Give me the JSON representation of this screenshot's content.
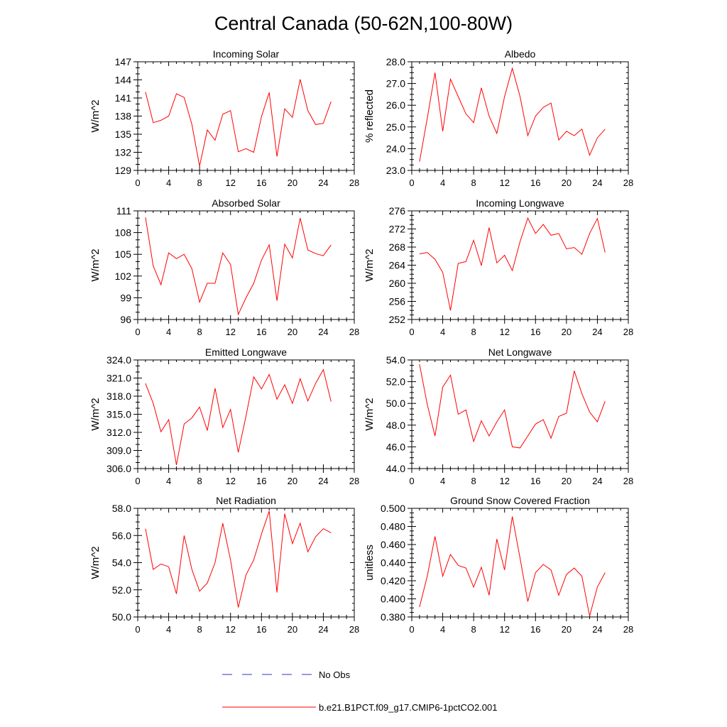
{
  "title": "Central Canada (50-62N,100-80W)",
  "colors": {
    "model": "#ff0000",
    "obs": "#3333cc",
    "axis": "#000000"
  },
  "legend": {
    "obs_label": "No Obs",
    "model_label": "b.e21.B1PCT.f09_g17.CMIP6-1pctCO2.001"
  },
  "chart_data": [
    {
      "type": "line",
      "title": "Incoming Solar",
      "ylabel": "W/m^2",
      "xlim": [
        0,
        28
      ],
      "xticks": [
        "0",
        "4",
        "8",
        "12",
        "16",
        "20",
        "24",
        "28"
      ],
      "ylim": [
        129,
        147
      ],
      "yticks": [
        "129",
        "132",
        "135",
        "138",
        "141",
        "144",
        "147"
      ],
      "x": [
        1,
        2,
        3,
        4,
        5,
        6,
        7,
        8,
        9,
        10,
        11,
        12,
        13,
        14,
        15,
        16,
        17,
        18,
        19,
        20,
        21,
        22,
        23,
        24,
        25
      ],
      "series": [
        {
          "name": "b.e21.B1PCT.f09_g17.CMIP6-1pctCO2.001",
          "values": [
            142.0,
            136.9,
            137.3,
            138.0,
            141.7,
            141.1,
            136.6,
            129.7,
            135.7,
            134.0,
            138.3,
            138.9,
            132.1,
            132.6,
            132.0,
            137.9,
            141.9,
            131.3,
            139.2,
            137.8,
            144.1,
            138.9,
            136.6,
            136.8,
            140.4
          ]
        }
      ]
    },
    {
      "type": "line",
      "title": "Albedo",
      "ylabel": "% reflected",
      "xlim": [
        0,
        28
      ],
      "xticks": [
        "0",
        "4",
        "8",
        "12",
        "16",
        "20",
        "24",
        "28"
      ],
      "ylim": [
        23.0,
        28.0
      ],
      "yticks": [
        "23.0",
        "24.0",
        "25.0",
        "26.0",
        "27.0",
        "28.0"
      ],
      "x": [
        1,
        2,
        3,
        4,
        5,
        6,
        7,
        8,
        9,
        10,
        11,
        12,
        13,
        14,
        15,
        16,
        17,
        18,
        19,
        20,
        21,
        22,
        23,
        24,
        25
      ],
      "series": [
        {
          "name": "b.e21.B1PCT.f09_g17.CMIP6-1pctCO2.001",
          "values": [
            23.4,
            25.4,
            27.5,
            24.8,
            27.2,
            26.4,
            25.6,
            25.2,
            26.8,
            25.5,
            24.7,
            26.4,
            27.7,
            26.4,
            24.6,
            25.5,
            25.9,
            26.1,
            24.4,
            24.8,
            24.6,
            24.9,
            23.7,
            24.5,
            24.9
          ]
        }
      ]
    },
    {
      "type": "line",
      "title": "Absorbed Solar",
      "ylabel": "W/m^2",
      "xlim": [
        0,
        28
      ],
      "xticks": [
        "0",
        "4",
        "8",
        "12",
        "16",
        "20",
        "24",
        "28"
      ],
      "ylim": [
        96,
        111
      ],
      "yticks": [
        "96",
        "99",
        "102",
        "105",
        "108",
        "111"
      ],
      "x": [
        1,
        2,
        3,
        4,
        5,
        6,
        7,
        8,
        9,
        10,
        11,
        12,
        13,
        14,
        15,
        16,
        17,
        18,
        19,
        20,
        21,
        22,
        23,
        24,
        25
      ],
      "series": [
        {
          "name": "b.e21.B1PCT.f09_g17.CMIP6-1pctCO2.001",
          "values": [
            110.1,
            103.4,
            100.8,
            105.2,
            104.4,
            105.0,
            103.0,
            98.4,
            101.0,
            101.0,
            105.2,
            103.6,
            96.7,
            99.0,
            101.0,
            104.2,
            106.3,
            98.6,
            106.4,
            104.5,
            110.0,
            105.6,
            105.1,
            104.8,
            106.3
          ]
        }
      ]
    },
    {
      "type": "line",
      "title": "Incoming Longwave",
      "ylabel": "W/m^2",
      "xlim": [
        0,
        28
      ],
      "xticks": [
        "0",
        "4",
        "8",
        "12",
        "16",
        "20",
        "24",
        "28"
      ],
      "ylim": [
        252,
        276
      ],
      "yticks": [
        "252",
        "256",
        "260",
        "264",
        "268",
        "272",
        "276"
      ],
      "x": [
        1,
        2,
        3,
        4,
        5,
        6,
        7,
        8,
        9,
        10,
        11,
        12,
        13,
        14,
        15,
        16,
        17,
        18,
        19,
        20,
        21,
        22,
        23,
        24,
        25
      ],
      "series": [
        {
          "name": "b.e21.B1PCT.f09_g17.CMIP6-1pctCO2.001",
          "values": [
            266.5,
            266.8,
            265.3,
            262.4,
            254.0,
            264.4,
            264.8,
            269.5,
            263.9,
            272.3,
            264.5,
            266.2,
            262.8,
            269.2,
            274.4,
            271.0,
            273.0,
            270.6,
            271.0,
            267.6,
            267.9,
            266.4,
            271.0,
            274.3,
            266.8
          ]
        }
      ]
    },
    {
      "type": "line",
      "title": "Emitted Longwave",
      "ylabel": "W/m^2",
      "xlim": [
        0,
        28
      ],
      "xticks": [
        "0",
        "4",
        "8",
        "12",
        "16",
        "20",
        "24",
        "28"
      ],
      "ylim": [
        306.0,
        324.0
      ],
      "yticks": [
        "306.0",
        "309.0",
        "312.0",
        "315.0",
        "318.0",
        "321.0",
        "324.0"
      ],
      "x": [
        1,
        2,
        3,
        4,
        5,
        6,
        7,
        8,
        9,
        10,
        11,
        12,
        13,
        14,
        15,
        16,
        17,
        18,
        19,
        20,
        21,
        22,
        23,
        24,
        25
      ],
      "series": [
        {
          "name": "b.e21.B1PCT.f09_g17.CMIP6-1pctCO2.001",
          "values": [
            320.1,
            316.8,
            312.1,
            314.1,
            306.6,
            313.4,
            314.4,
            316.2,
            312.3,
            319.3,
            312.8,
            315.8,
            308.7,
            314.7,
            321.2,
            319.2,
            321.6,
            317.5,
            319.9,
            316.8,
            320.9,
            317.2,
            320.1,
            322.4,
            317.1
          ]
        }
      ]
    },
    {
      "type": "line",
      "title": "Net Longwave",
      "ylabel": "W/m^2",
      "xlim": [
        0,
        28
      ],
      "xticks": [
        "0",
        "4",
        "8",
        "12",
        "16",
        "20",
        "24",
        "28"
      ],
      "ylim": [
        44.0,
        54.0
      ],
      "yticks": [
        "44.0",
        "46.0",
        "48.0",
        "50.0",
        "52.0",
        "54.0"
      ],
      "x": [
        1,
        2,
        3,
        4,
        5,
        6,
        7,
        8,
        9,
        10,
        11,
        12,
        13,
        14,
        15,
        16,
        17,
        18,
        19,
        20,
        21,
        22,
        23,
        24,
        25
      ],
      "series": [
        {
          "name": "b.e21.B1PCT.f09_g17.CMIP6-1pctCO2.001",
          "values": [
            53.6,
            49.9,
            47.0,
            51.5,
            52.6,
            49.0,
            49.4,
            46.5,
            48.4,
            47.0,
            48.3,
            49.4,
            46.0,
            45.9,
            47.0,
            48.1,
            48.5,
            46.8,
            48.8,
            49.1,
            53.0,
            50.9,
            49.2,
            48.3,
            50.2
          ]
        }
      ]
    },
    {
      "type": "line",
      "title": "Net Radiation",
      "ylabel": "W/m^2",
      "xlim": [
        0,
        28
      ],
      "xticks": [
        "0",
        "4",
        "8",
        "12",
        "16",
        "20",
        "24",
        "28"
      ],
      "ylim": [
        50.0,
        58.0
      ],
      "yticks": [
        "50.0",
        "52.0",
        "54.0",
        "56.0",
        "58.0"
      ],
      "x": [
        1,
        2,
        3,
        4,
        5,
        6,
        7,
        8,
        9,
        10,
        11,
        12,
        13,
        14,
        15,
        16,
        17,
        18,
        19,
        20,
        21,
        22,
        23,
        24,
        25
      ],
      "series": [
        {
          "name": "b.e21.B1PCT.f09_g17.CMIP6-1pctCO2.001",
          "values": [
            56.5,
            53.5,
            53.9,
            53.7,
            51.7,
            56.0,
            53.5,
            51.9,
            52.5,
            54.0,
            56.9,
            54.2,
            50.7,
            53.1,
            54.2,
            56.1,
            57.8,
            51.8,
            57.6,
            55.4,
            56.9,
            54.8,
            55.9,
            56.5,
            56.2
          ]
        }
      ]
    },
    {
      "type": "line",
      "title": "Ground Snow Covered Fraction",
      "ylabel": "unitless",
      "xlim": [
        0,
        28
      ],
      "xticks": [
        "0",
        "4",
        "8",
        "12",
        "16",
        "20",
        "24",
        "28"
      ],
      "ylim": [
        0.38,
        0.5
      ],
      "yticks": [
        "0.380",
        "0.400",
        "0.420",
        "0.440",
        "0.460",
        "0.480",
        "0.500"
      ],
      "x": [
        1,
        2,
        3,
        4,
        5,
        6,
        7,
        8,
        9,
        10,
        11,
        12,
        13,
        14,
        15,
        16,
        17,
        18,
        19,
        20,
        21,
        22,
        23,
        24,
        25
      ],
      "series": [
        {
          "name": "b.e21.B1PCT.f09_g17.CMIP6-1pctCO2.001",
          "values": [
            0.391,
            0.425,
            0.469,
            0.425,
            0.449,
            0.437,
            0.434,
            0.413,
            0.435,
            0.404,
            0.466,
            0.432,
            0.491,
            0.445,
            0.397,
            0.429,
            0.438,
            0.432,
            0.404,
            0.427,
            0.434,
            0.425,
            0.381,
            0.413,
            0.429
          ]
        }
      ]
    }
  ]
}
